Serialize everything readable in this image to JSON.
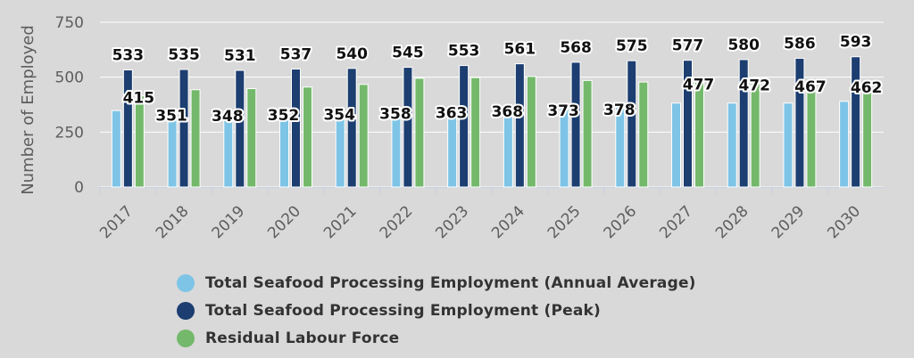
{
  "chart_data": {
    "type": "bar",
    "title": "",
    "xlabel": "",
    "ylabel": "Number of Employed",
    "ylim": [
      0,
      750
    ],
    "yticks": [
      0,
      250,
      500,
      750
    ],
    "grid": true,
    "legend_position": "bottom",
    "categories": [
      "2017",
      "2018",
      "2019",
      "2020",
      "2021",
      "2022",
      "2023",
      "2024",
      "2025",
      "2026",
      "2027",
      "2028",
      "2029",
      "2030"
    ],
    "series": [
      {
        "name": "Total Seafood Processing Employment (Annual Average)",
        "color": "#7ec4e6",
        "values": [
          348,
          351,
          348,
          352,
          354,
          358,
          363,
          368,
          373,
          378,
          382,
          382,
          382,
          390
        ],
        "labels": [
          "",
          "351",
          "348",
          "352",
          "354",
          "358",
          "363",
          "368",
          "373",
          "378",
          "",
          "",
          "",
          ""
        ]
      },
      {
        "name": "Total Seafood Processing Employment (Peak)",
        "color": "#1c3e70",
        "values": [
          533,
          535,
          531,
          537,
          540,
          545,
          553,
          561,
          568,
          575,
          577,
          580,
          586,
          593
        ],
        "labels": [
          "533",
          "535",
          "531",
          "537",
          "540",
          "545",
          "553",
          "561",
          "568",
          "575",
          "577",
          "580",
          "586",
          "593"
        ]
      },
      {
        "name": "Residual Labour Force",
        "color": "#74b96b",
        "values": [
          415,
          443,
          448,
          455,
          467,
          495,
          498,
          503,
          485,
          478,
          477,
          472,
          467,
          462
        ],
        "labels": [
          "415",
          "",
          "",
          "",
          "",
          "",
          "",
          "",
          "",
          "",
          "477",
          "472",
          "467",
          "462"
        ]
      }
    ]
  }
}
